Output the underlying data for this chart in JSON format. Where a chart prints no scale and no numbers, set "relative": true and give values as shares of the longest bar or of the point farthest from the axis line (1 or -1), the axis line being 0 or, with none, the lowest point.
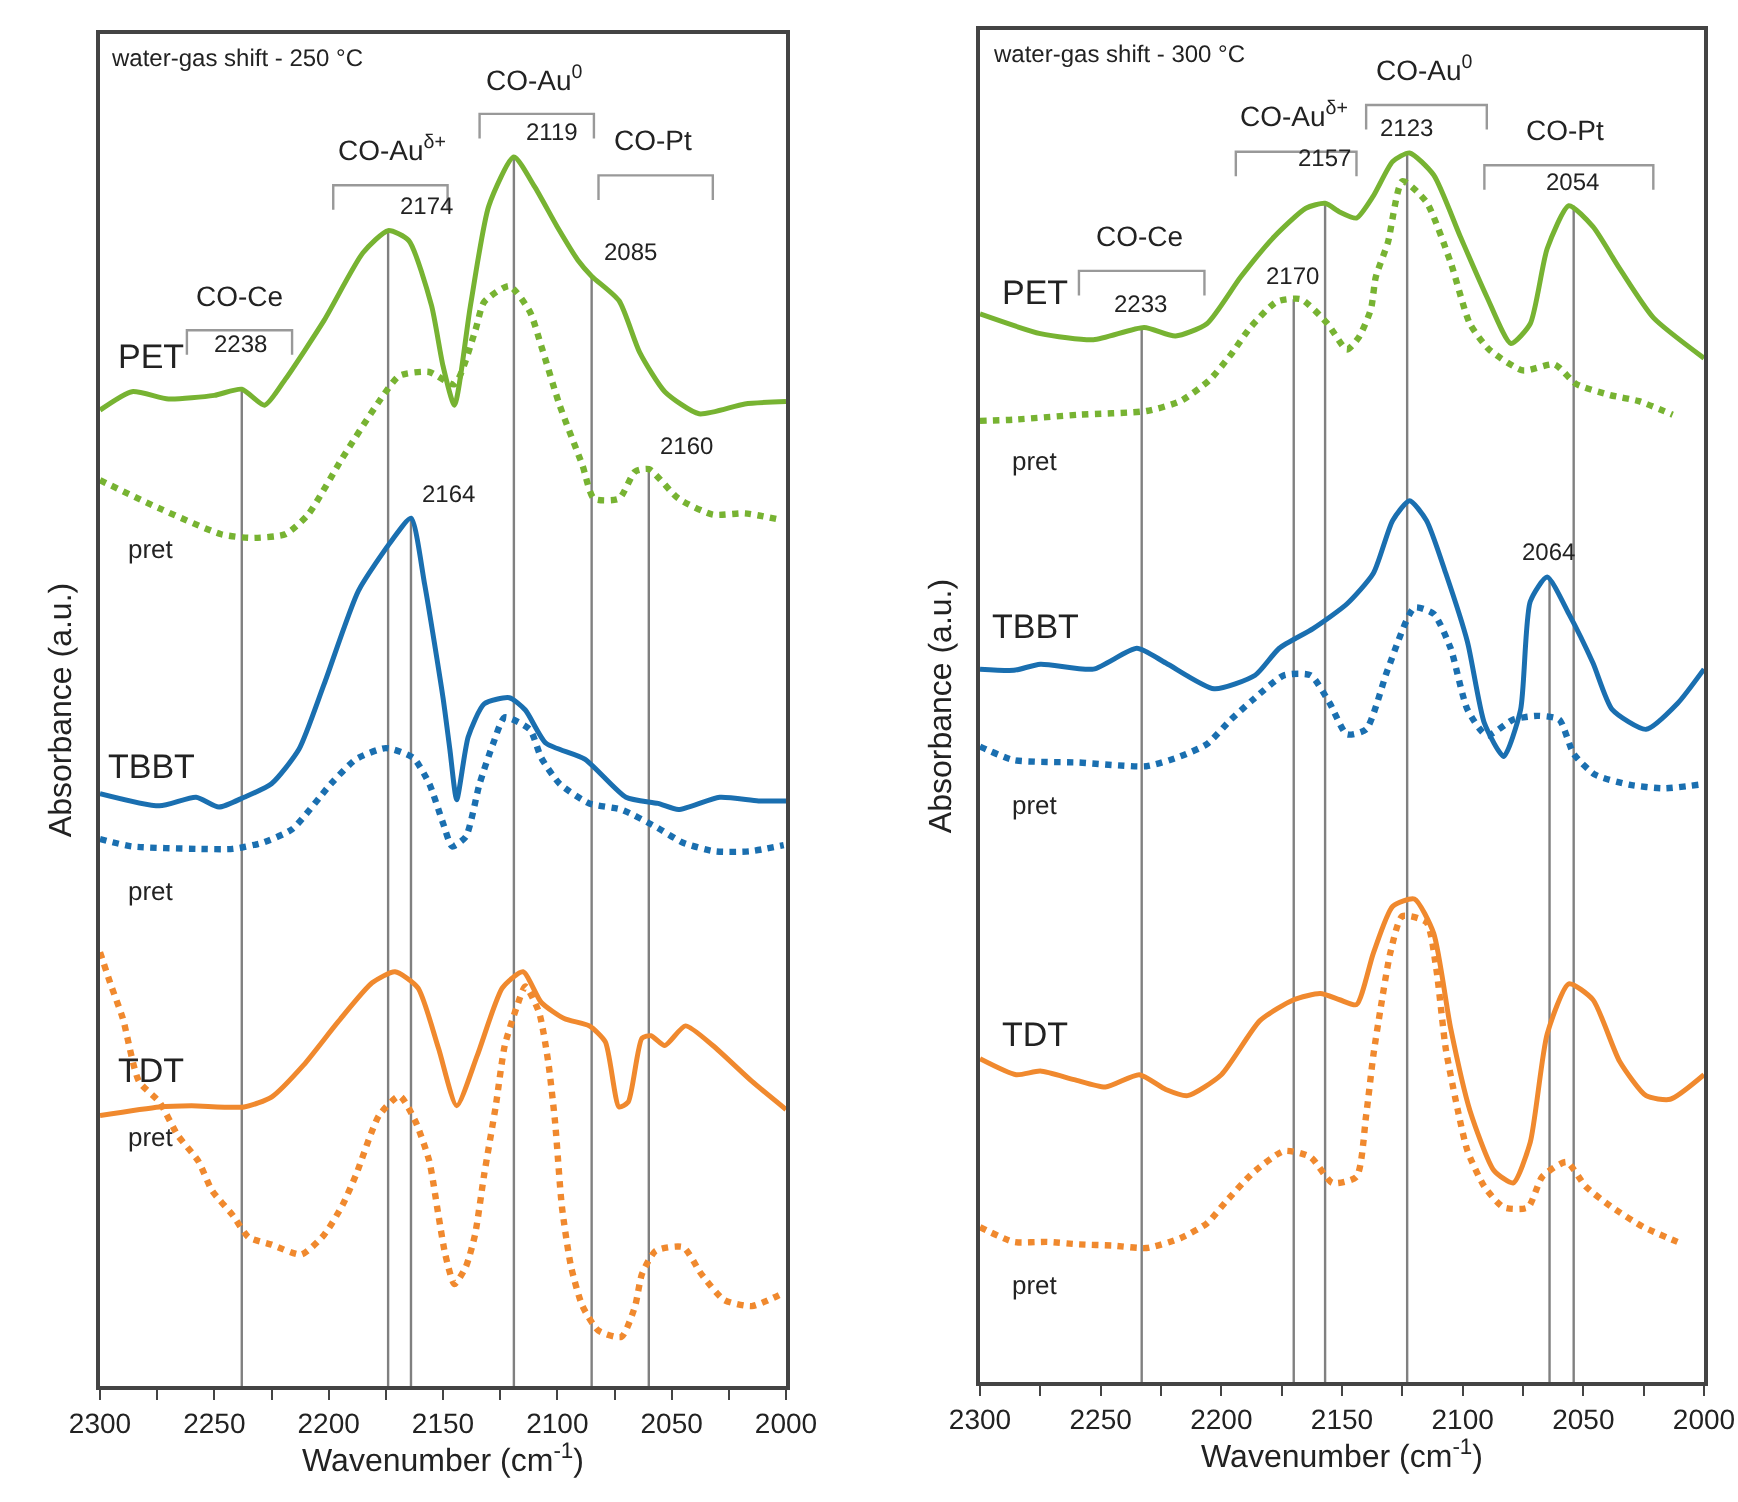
{
  "chart_data": [
    {
      "type": "line",
      "title": "water-gas shift - 250 °C",
      "xlabel": "Wavenumber (cm$^{-1}$)",
      "ylabel": "Absorbance (a.u.)",
      "relative": true,
      "legend": false,
      "grid": false,
      "marker": "none",
      "xlim": [
        2300,
        2000
      ],
      "xticks": [
        2300,
        {
          "value": 2275,
          "label": null
        },
        2250,
        {
          "value": 2225,
          "label": null
        },
        2200,
        {
          "value": 2175,
          "label": null
        },
        2150,
        {
          "value": 2125,
          "label": null
        },
        2100,
        {
          "value": 2075,
          "label": null
        },
        2050,
        {
          "value": 2025,
          "label": null
        },
        2000
      ],
      "series": [
        {
          "name": "PET",
          "color": "#77b332",
          "line_style": "solid",
          "x": [
            2300,
            2286,
            2270,
            2250,
            2238,
            2228,
            2219,
            2202,
            2185,
            2174,
            2165,
            2155,
            2150,
            2145,
            2138,
            2130,
            2119,
            2110,
            2100,
            2091,
            2085,
            2073,
            2064,
            2053,
            2038,
            2018,
            2000
          ],
          "values": [
            0.794,
            0.809,
            0.803,
            0.806,
            0.811,
            0.798,
            0.819,
            0.867,
            0.922,
            0.94,
            0.932,
            0.879,
            0.83,
            0.798,
            0.879,
            0.96,
            1.0,
            0.976,
            0.943,
            0.916,
            0.903,
            0.883,
            0.841,
            0.809,
            0.791,
            0.799,
            0.801
          ]
        },
        {
          "name": "pret",
          "color": "#77b332",
          "line_style": "dotted",
          "x": [
            2300,
            2274,
            2247,
            2234,
            2219,
            2209,
            2194,
            2178,
            2169,
            2156,
            2145,
            2136,
            2132,
            2121,
            2112,
            2107,
            2099,
            2089,
            2084,
            2073,
            2066,
            2060,
            2047,
            2032,
            2018,
            2003
          ],
          "values": [
            0.737,
            0.714,
            0.693,
            0.69,
            0.693,
            0.709,
            0.755,
            0.801,
            0.822,
            0.825,
            0.815,
            0.858,
            0.882,
            0.895,
            0.874,
            0.846,
            0.798,
            0.749,
            0.722,
            0.722,
            0.744,
            0.746,
            0.722,
            0.709,
            0.71,
            0.705
          ]
        },
        {
          "name": "TBBT",
          "color": "#1a6fb0",
          "line_style": "solid",
          "x": [
            2300,
            2274,
            2258,
            2248,
            2237,
            2225,
            2213,
            2202,
            2187,
            2172,
            2164,
            2158,
            2150,
            2147,
            2144,
            2139,
            2132,
            2121,
            2114,
            2105,
            2088,
            2070,
            2056,
            2047,
            2029,
            2012,
            2000
          ],
          "values": [
            0.482,
            0.472,
            0.479,
            0.471,
            0.479,
            0.49,
            0.518,
            0.571,
            0.647,
            0.689,
            0.706,
            0.652,
            0.56,
            0.518,
            0.477,
            0.528,
            0.555,
            0.56,
            0.55,
            0.523,
            0.51,
            0.479,
            0.474,
            0.469,
            0.479,
            0.476,
            0.476
          ]
        },
        {
          "name": "pret",
          "color": "#1a6fb0",
          "line_style": "dotted",
          "x": [
            2300,
            2286,
            2257,
            2242,
            2229,
            2216,
            2199,
            2188,
            2175,
            2163,
            2156,
            2150,
            2146,
            2140,
            2134,
            2128,
            2123,
            2112,
            2107,
            2099,
            2086,
            2072,
            2057,
            2045,
            2031,
            2016,
            2001
          ],
          "values": [
            0.445,
            0.439,
            0.437,
            0.437,
            0.442,
            0.453,
            0.49,
            0.51,
            0.519,
            0.511,
            0.49,
            0.458,
            0.439,
            0.447,
            0.49,
            0.523,
            0.544,
            0.534,
            0.511,
            0.49,
            0.474,
            0.469,
            0.455,
            0.442,
            0.435,
            0.435,
            0.44
          ]
        },
        {
          "name": "TDT",
          "color": "#f0892e",
          "line_style": "solid",
          "x": [
            2300,
            2274,
            2260,
            2237,
            2225,
            2211,
            2196,
            2181,
            2171,
            2161,
            2152,
            2144,
            2135,
            2124,
            2115,
            2107,
            2097,
            2086,
            2079,
            2073,
            2069,
            2063,
            2059,
            2053,
            2044,
            2032,
            2015,
            2000
          ],
          "values": [
            0.22,
            0.227,
            0.228,
            0.227,
            0.235,
            0.261,
            0.296,
            0.328,
            0.337,
            0.324,
            0.275,
            0.228,
            0.269,
            0.324,
            0.337,
            0.312,
            0.299,
            0.293,
            0.28,
            0.227,
            0.231,
            0.283,
            0.285,
            0.277,
            0.293,
            0.277,
            0.248,
            0.225
          ]
        },
        {
          "name": "pret",
          "color": "#f0892e",
          "line_style": "dotted",
          "x": [
            2300,
            2295,
            2290,
            2283,
            2274,
            2266,
            2257,
            2251,
            2242,
            2235,
            2225,
            2212,
            2202,
            2194,
            2188,
            2178,
            2169,
            2162,
            2156,
            2152,
            2149,
            2145,
            2140,
            2136,
            2132,
            2127,
            2123,
            2118,
            2114,
            2108,
            2104,
            2101,
            2098,
            2094,
            2089,
            2082,
            2072,
            2066,
            2063,
            2057,
            2045,
            2037,
            2027,
            2015,
            2003
          ],
          "values": [
            0.353,
            0.325,
            0.299,
            0.248,
            0.231,
            0.204,
            0.183,
            0.159,
            0.139,
            0.121,
            0.115,
            0.107,
            0.123,
            0.147,
            0.172,
            0.22,
            0.236,
            0.215,
            0.183,
            0.139,
            0.107,
            0.083,
            0.097,
            0.123,
            0.172,
            0.227,
            0.277,
            0.307,
            0.325,
            0.304,
            0.264,
            0.215,
            0.146,
            0.097,
            0.065,
            0.045,
            0.04,
            0.065,
            0.091,
            0.11,
            0.113,
            0.091,
            0.07,
            0.065,
            0.074
          ]
        }
      ],
      "ref_lines": [
        {
          "axis": "x",
          "value": 2238,
          "color": "#808080"
        },
        {
          "axis": "x",
          "value": 2174,
          "color": "#808080"
        },
        {
          "axis": "x",
          "value": 2164,
          "color": "#808080"
        },
        {
          "axis": "x",
          "value": 2119,
          "color": "#808080"
        },
        {
          "axis": "x",
          "value": 2085,
          "color": "#808080"
        },
        {
          "axis": "x",
          "value": 2060,
          "color": "#808080"
        }
      ],
      "annotations": [
        "CO-Ce",
        "CO-Au$^{δ+}$",
        "CO-Au$^{0}$",
        "CO-Pt",
        {
          "text": "2238",
          "x": 2238,
          "y": 0.811
        },
        {
          "text": "2174",
          "x": 2174,
          "y": 0.94
        },
        {
          "text": "2164",
          "x": 2164,
          "y": 0.706
        },
        {
          "text": "2119",
          "x": 2119,
          "y": 1.0
        },
        {
          "text": "2085",
          "x": 2085,
          "y": 0.903
        },
        {
          "text": "2160",
          "x": 2060,
          "y": 0.746
        }
      ]
    },
    {
      "type": "line",
      "title": "water-gas shift - 300 °C",
      "xlabel": "Wavenumber (cm$^{-1}$)",
      "ylabel": "Absorbance (a.u.)",
      "relative": true,
      "legend": false,
      "grid": false,
      "marker": "none",
      "xlim": [
        2300,
        2000
      ],
      "xticks": [
        2300,
        {
          "value": 2275,
          "label": null
        },
        2250,
        {
          "value": 2225,
          "label": null
        },
        2200,
        {
          "value": 2175,
          "label": null
        },
        2150,
        {
          "value": 2125,
          "label": null
        },
        2100,
        {
          "value": 2075,
          "label": null
        },
        2050,
        {
          "value": 2025,
          "label": null
        },
        2000
      ],
      "series": [
        {
          "name": "PET",
          "color": "#77b332",
          "line_style": "solid",
          "x": [
            2300,
            2275,
            2253,
            2232,
            2219,
            2206,
            2192,
            2178,
            2165,
            2157,
            2151,
            2144,
            2137,
            2129,
            2122,
            2112,
            2101,
            2090,
            2080,
            2072,
            2065,
            2056,
            2046,
            2035,
            2021,
            2000
          ],
          "values": [
            0.869,
            0.853,
            0.848,
            0.858,
            0.851,
            0.861,
            0.899,
            0.932,
            0.955,
            0.959,
            0.952,
            0.947,
            0.965,
            0.993,
            1.0,
            0.982,
            0.932,
            0.883,
            0.845,
            0.861,
            0.922,
            0.957,
            0.94,
            0.906,
            0.866,
            0.833
          ]
        },
        {
          "name": "pret",
          "color": "#77b332",
          "line_style": "dotted",
          "x": [
            2300,
            2286,
            2259,
            2231,
            2217,
            2205,
            2196,
            2188,
            2177,
            2167,
            2156,
            2148,
            2143,
            2138,
            2136,
            2131,
            2125,
            2115,
            2105,
            2097,
            2089,
            2075,
            2062,
            2053,
            2039,
            2027,
            2013
          ],
          "values": [
            0.782,
            0.783,
            0.787,
            0.79,
            0.798,
            0.815,
            0.836,
            0.858,
            0.879,
            0.881,
            0.861,
            0.84,
            0.85,
            0.873,
            0.899,
            0.927,
            0.977,
            0.96,
            0.911,
            0.861,
            0.84,
            0.823,
            0.828,
            0.812,
            0.803,
            0.798,
            0.787
          ]
        },
        {
          "name": "TBBT",
          "color": "#1a6fb0",
          "line_style": "solid",
          "x": [
            2300,
            2286,
            2275,
            2253,
            2235,
            2223,
            2203,
            2186,
            2176,
            2162,
            2148,
            2137,
            2129,
            2122,
            2115,
            2107,
            2098,
            2091,
            2083,
            2076,
            2072,
            2065,
            2056,
            2046,
            2038,
            2024,
            2011,
            2000
          ],
          "values": [
            0.58,
            0.579,
            0.584,
            0.58,
            0.597,
            0.585,
            0.564,
            0.575,
            0.597,
            0.613,
            0.633,
            0.658,
            0.701,
            0.717,
            0.701,
            0.658,
            0.602,
            0.536,
            0.509,
            0.547,
            0.635,
            0.655,
            0.625,
            0.585,
            0.547,
            0.531,
            0.552,
            0.58
          ]
        },
        {
          "name": "pret",
          "color": "#1a6fb0",
          "line_style": "dotted",
          "x": [
            2300,
            2286,
            2259,
            2231,
            2217,
            2206,
            2196,
            2187,
            2174,
            2163,
            2155,
            2148,
            2140,
            2131,
            2120,
            2112,
            2105,
            2098,
            2090,
            2079,
            2069,
            2060,
            2054,
            2045,
            2031,
            2017,
            2002
          ],
          "values": [
            0.517,
            0.506,
            0.504,
            0.501,
            0.509,
            0.519,
            0.539,
            0.555,
            0.575,
            0.575,
            0.552,
            0.527,
            0.531,
            0.58,
            0.63,
            0.625,
            0.597,
            0.547,
            0.526,
            0.539,
            0.542,
            0.539,
            0.511,
            0.494,
            0.486,
            0.483,
            0.486
          ]
        },
        {
          "name": "TDT",
          "color": "#f0892e",
          "line_style": "solid",
          "x": [
            2300,
            2285,
            2275,
            2261,
            2248,
            2234,
            2223,
            2214,
            2200,
            2184,
            2170,
            2159,
            2151,
            2144,
            2137,
            2129,
            2120,
            2112,
            2105,
            2097,
            2087,
            2079,
            2072,
            2065,
            2056,
            2046,
            2035,
            2024,
            2014,
            2000
          ],
          "values": [
            0.263,
            0.25,
            0.253,
            0.246,
            0.24,
            0.25,
            0.238,
            0.233,
            0.25,
            0.294,
            0.311,
            0.316,
            0.311,
            0.307,
            0.349,
            0.387,
            0.393,
            0.365,
            0.288,
            0.221,
            0.172,
            0.162,
            0.195,
            0.283,
            0.324,
            0.311,
            0.261,
            0.233,
            0.23,
            0.25
          ]
        },
        {
          "name": "pret",
          "color": "#f0892e",
          "line_style": "dotted",
          "x": [
            2300,
            2286,
            2272,
            2259,
            2245,
            2231,
            2217,
            2206,
            2198,
            2187,
            2174,
            2163,
            2154,
            2144,
            2140,
            2137,
            2134,
            2130,
            2125,
            2115,
            2111,
            2107,
            2102,
            2098,
            2091,
            2083,
            2073,
            2067,
            2057,
            2049,
            2038,
            2025,
            2011
          ],
          "values": [
            0.126,
            0.114,
            0.114,
            0.112,
            0.111,
            0.109,
            0.117,
            0.129,
            0.147,
            0.17,
            0.188,
            0.183,
            0.162,
            0.167,
            0.217,
            0.266,
            0.304,
            0.349,
            0.379,
            0.374,
            0.337,
            0.271,
            0.221,
            0.188,
            0.159,
            0.142,
            0.142,
            0.167,
            0.179,
            0.159,
            0.142,
            0.126,
            0.114
          ]
        }
      ],
      "ref_lines": [
        {
          "axis": "x",
          "value": 2233,
          "color": "#808080"
        },
        {
          "axis": "x",
          "value": 2170,
          "color": "#808080"
        },
        {
          "axis": "x",
          "value": 2157,
          "color": "#808080"
        },
        {
          "axis": "x",
          "value": 2123,
          "color": "#808080"
        },
        {
          "axis": "x",
          "value": 2064,
          "color": "#808080"
        },
        {
          "axis": "x",
          "value": 2054,
          "color": "#808080"
        }
      ],
      "annotations": [
        "CO-Ce",
        "CO-Au$^{δ+}$",
        "CO-Au$^{0}$",
        "CO-Pt",
        {
          "text": "2233",
          "x": 2233,
          "y": 0.858
        },
        {
          "text": "2170",
          "x": 2170,
          "y": 0.881
        },
        {
          "text": "2157",
          "x": 2157,
          "y": 0.959
        },
        {
          "text": "2123",
          "x": 2123,
          "y": 1.0
        },
        {
          "text": "2064",
          "x": 2064,
          "y": 0.655
        },
        {
          "text": "2054",
          "x": 2054,
          "y": 0.957
        }
      ]
    }
  ]
}
